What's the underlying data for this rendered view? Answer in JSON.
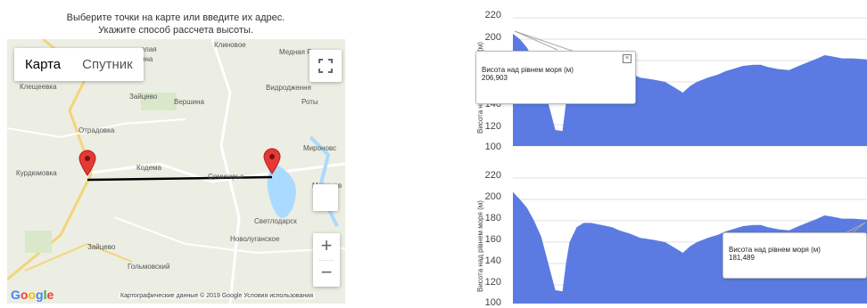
{
  "instructions": {
    "line1": "Выберите точки на карте или введите их адрес.",
    "line2": "Укажите способ рассчета высоты."
  },
  "map": {
    "maptype": {
      "map_label": "Карта",
      "satellite_label": "Спутник"
    },
    "zoom": {
      "plus": "+",
      "minus": "−"
    },
    "labels": [
      "Клиновое",
      "Медная Руда",
      "елая",
      "ина",
      "Клещеевка",
      "Зайцево",
      "Вершина",
      "Видродження",
      "Роты",
      "Отрадовка",
      "Мироновс",
      "Курдюмовка",
      "Кодема",
      "Семигорье",
      "Миронов",
      "Светлодарск",
      "Новолуганское",
      "Зайцево",
      "Гольмовский"
    ],
    "logo": "Google",
    "attribution": "Картографические данные © 2019 Google   Условия использования",
    "line_color": "#000000",
    "marker_color": "#e53935"
  },
  "charts": {
    "fill_color": "#5b7be3",
    "chart1": {
      "y_ticks": [
        "220",
        "200",
        "180",
        "160",
        "140",
        "120",
        "100"
      ],
      "ylabel": "Висота над рівнем моря (м)",
      "tooltip_label": "Висота над рівнем моря (м)",
      "tooltip_value": "206,903"
    },
    "chart2": {
      "y_ticks": [
        "220",
        "200",
        "180",
        "160",
        "140",
        "120",
        "100"
      ],
      "ylabel": "Висота над рівнем моря (м)",
      "tooltip_label": "Висота над рівнем моря (м)",
      "tooltip_value": "181,489"
    }
  },
  "chart_data": [
    {
      "type": "area",
      "ylabel": "Висота над рівнем моря (м)",
      "ylim": [
        100,
        220
      ],
      "x": [
        0,
        2,
        4,
        6,
        8,
        10,
        12,
        14,
        15,
        16,
        18,
        20,
        22,
        25,
        28,
        30,
        33,
        36,
        38,
        40,
        43,
        45,
        48,
        50,
        52,
        55,
        58,
        60,
        62,
        65,
        68,
        70,
        72,
        75,
        78,
        80,
        83,
        86,
        88,
        90,
        93,
        96,
        100
      ],
      "values": [
        205,
        200,
        192,
        180,
        165,
        140,
        115,
        114,
        140,
        160,
        174,
        178,
        178,
        176,
        174,
        171,
        168,
        164,
        163,
        162,
        160,
        156,
        150,
        156,
        160,
        164,
        167,
        170,
        172,
        175,
        176,
        176,
        174,
        172,
        171,
        174,
        178,
        182,
        185,
        184,
        182,
        182,
        181
      ]
    },
    {
      "type": "area",
      "ylabel": "Висота над рівнем моря (м)",
      "ylim": [
        100,
        220
      ],
      "x": [
        0,
        2,
        4,
        6,
        8,
        10,
        12,
        14,
        15,
        16,
        18,
        20,
        22,
        25,
        28,
        30,
        33,
        36,
        38,
        40,
        43,
        45,
        48,
        50,
        52,
        55,
        58,
        60,
        62,
        65,
        68,
        70,
        72,
        75,
        78,
        80,
        83,
        86,
        88,
        90,
        93,
        96,
        100
      ],
      "values": [
        207,
        200,
        192,
        180,
        165,
        140,
        115,
        114,
        140,
        160,
        174,
        178,
        178,
        176,
        174,
        171,
        168,
        164,
        163,
        162,
        160,
        156,
        150,
        156,
        160,
        164,
        167,
        170,
        172,
        175,
        176,
        176,
        174,
        172,
        171,
        174,
        178,
        182,
        185,
        184,
        182,
        182,
        181
      ]
    }
  ]
}
